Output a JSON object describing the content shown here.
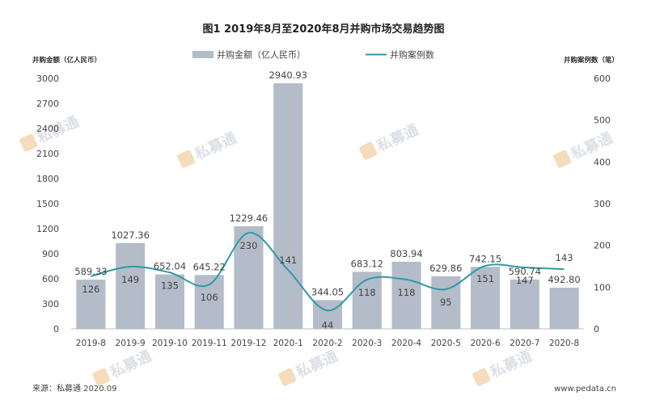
{
  "chart_data": {
    "type": "bar+line",
    "title": "图1  2019年8月至2020年8月并购市场交易趋势图",
    "categories": [
      "2019-8",
      "2019-9",
      "2019-10",
      "2019-11",
      "2019-12",
      "2020-1",
      "2020-2",
      "2020-3",
      "2020-4",
      "2020-5",
      "2020-6",
      "2020-7",
      "2020-8"
    ],
    "series": [
      {
        "name": "并购金额（亿人民币）",
        "type": "bar",
        "axis": "left",
        "color": "#b3bcc8",
        "values": [
          589.33,
          1027.36,
          652.04,
          645.22,
          1229.46,
          2940.93,
          344.05,
          683.12,
          803.94,
          629.86,
          742.15,
          590.74,
          492.8
        ],
        "labels": [
          "589.33",
          "1027.36",
          "652.04",
          "645.22",
          "1229.46",
          "2940.93",
          "344.05",
          "683.12",
          "803.94",
          "629.86",
          "742.15",
          "590.74",
          "492.80"
        ]
      },
      {
        "name": "并购案例数",
        "type": "line",
        "axis": "right",
        "color": "#2f9aa6",
        "values": [
          126,
          149,
          135,
          106,
          230,
          141,
          44,
          118,
          118,
          95,
          151,
          147,
          143
        ],
        "labels": [
          "126",
          "149",
          "135",
          "106",
          "230",
          "141",
          "44",
          "118",
          "118",
          "95",
          "151",
          "147",
          "143"
        ]
      }
    ],
    "y_left": {
      "label": "并购金额（亿人民币）",
      "ylim": [
        0,
        3000
      ],
      "ticks": [
        "0",
        "300",
        "600",
        "900",
        "1200",
        "1500",
        "1800",
        "2100",
        "2400",
        "2700",
        "3000"
      ]
    },
    "y_right": {
      "label": "并购案例数（笔）",
      "ylim": [
        0,
        600
      ],
      "ticks": [
        "0",
        "100",
        "200",
        "300",
        "400",
        "500",
        "600"
      ]
    },
    "grid": false,
    "legend": "top-center"
  },
  "footer": {
    "source": "来源：私募通 2020.09",
    "site": "www.pedata.cn"
  },
  "watermark": {
    "text": "私募通"
  }
}
